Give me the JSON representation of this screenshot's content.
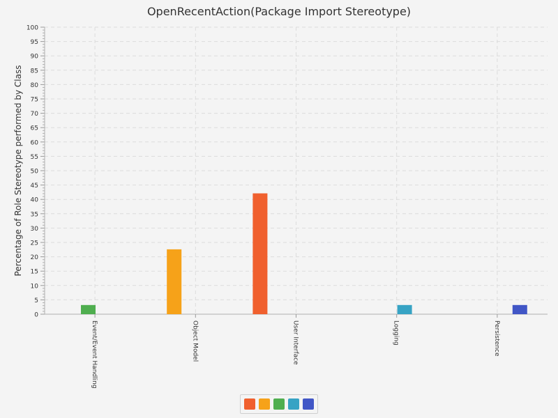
{
  "chart_data": {
    "type": "bar",
    "title": "OpenRecentAction(Package Import Stereotype)",
    "ylabel": "Percentage of Role Stereotype performed by Class",
    "xlabel": "",
    "categories": [
      "Event/Event Handling",
      "Object Model",
      "User Interface",
      "Logging",
      "Persistence"
    ],
    "series": [
      {
        "color": "#f0602e",
        "values": [
          0,
          0,
          42.1,
          0,
          0
        ]
      },
      {
        "color": "#f6a219",
        "values": [
          0,
          22.6,
          0,
          0,
          0
        ]
      },
      {
        "color": "#4fae4f",
        "values": [
          3.2,
          0,
          0,
          0,
          0
        ]
      },
      {
        "color": "#37a3c4",
        "values": [
          0,
          0,
          0,
          3.2,
          0
        ]
      },
      {
        "color": "#4156c6",
        "values": [
          0,
          0,
          0,
          0,
          3.2
        ]
      }
    ],
    "ylim": [
      0,
      100
    ],
    "yticks": [
      0,
      5,
      10,
      15,
      20,
      25,
      30,
      35,
      40,
      45,
      50,
      55,
      60,
      65,
      70,
      75,
      80,
      85,
      90,
      95,
      100
    ],
    "grid": true,
    "legend": "bottom-center"
  }
}
